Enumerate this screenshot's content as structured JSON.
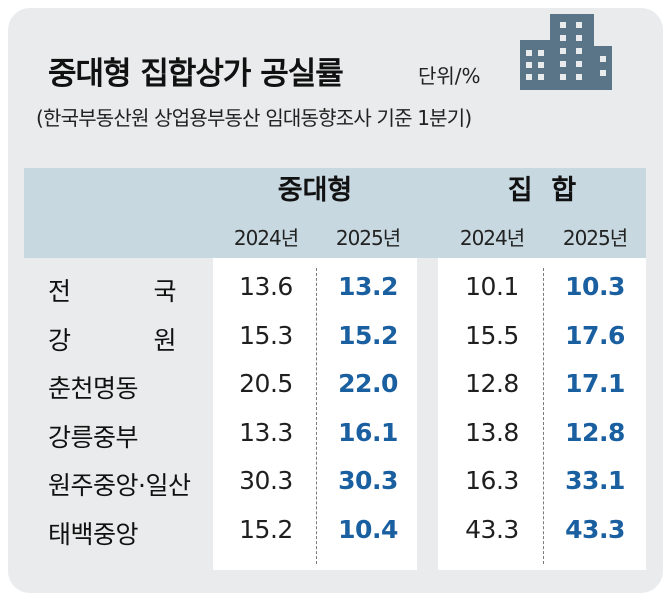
{
  "title": "중대형 집합상가 공실률",
  "unit": "단위/%",
  "subtitle": "(한국부동산원 상업용부동산 임대동향조사 기준 1분기)",
  "colors": {
    "background": "#e9ebec",
    "header_band": "#c7d8e1",
    "value_2024": "#1f1f1f",
    "value_2025": "#1a5fa0",
    "building_icon": "#5a7488"
  },
  "chart_data": {
    "type": "table",
    "groups": [
      {
        "name": "중대형",
        "years": [
          "2024년",
          "2025년"
        ]
      },
      {
        "name": "집  합",
        "years": [
          "2024년",
          "2025년"
        ]
      }
    ],
    "rows": [
      {
        "region": "전  국",
        "values": [
          "13.6",
          "13.2",
          "10.1",
          "10.3"
        ]
      },
      {
        "region": "강  원",
        "values": [
          "15.3",
          "15.2",
          "15.5",
          "17.6"
        ]
      },
      {
        "region": "춘천명동",
        "values": [
          "20.5",
          "22.0",
          "12.8",
          "17.1"
        ]
      },
      {
        "region": "강릉중부",
        "values": [
          "13.3",
          "16.1",
          "13.8",
          "12.8"
        ]
      },
      {
        "region": "원주중앙·일산",
        "values": [
          "30.3",
          "30.3",
          "16.3",
          "33.1"
        ]
      },
      {
        "region": "태백중앙",
        "values": [
          "15.2",
          "10.4",
          "43.3",
          "43.3"
        ]
      }
    ]
  }
}
